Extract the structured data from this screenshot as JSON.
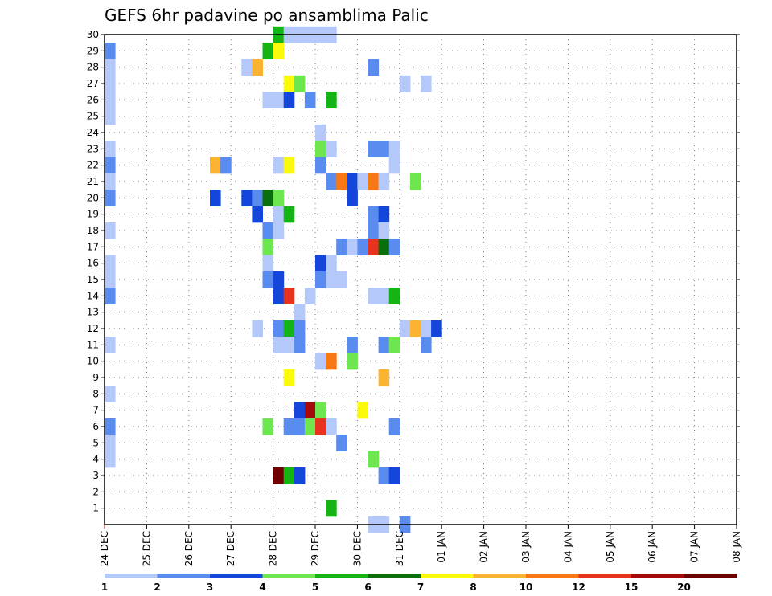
{
  "chart_data": {
    "type": "heatmap",
    "title": "GEFS 6hr padavine po ansamblima Palic",
    "xlabel": "",
    "ylabel": "",
    "x_tick_labels": [
      "24 DEC",
      "25 DEC",
      "26 DEC",
      "27 DEC",
      "28 DEC",
      "29 DEC",
      "30 DEC",
      "31 DEC",
      "01 JAN",
      "02 JAN",
      "03 JAN",
      "04 JAN",
      "05 JAN",
      "06 JAN",
      "07 JAN",
      "08 JAN"
    ],
    "x_range_steps": [
      0,
      60
    ],
    "steps_per_day": 4,
    "y_tick_labels": [
      "1",
      "2",
      "3",
      "4",
      "5",
      "6",
      "7",
      "8",
      "9",
      "10",
      "11",
      "12",
      "13",
      "14",
      "15",
      "16",
      "17",
      "18",
      "19",
      "20",
      "21",
      "22",
      "23",
      "24",
      "25",
      "26",
      "27",
      "28",
      "29",
      "30"
    ],
    "y_range": [
      0,
      30
    ],
    "grid": "dotted",
    "colorbar": {
      "position": "bottom",
      "tick_labels": [
        "1",
        "2",
        "3",
        "4",
        "5",
        "6",
        "7",
        "8",
        "10",
        "12",
        "15",
        "20"
      ],
      "colors": [
        "#b4c8fa",
        "#5a8cf0",
        "#1446dc",
        "#6ee650",
        "#14b414",
        "#0a6e0a",
        "#fafa0a",
        "#fab432",
        "#fa7814",
        "#e6321e",
        "#a50a0a",
        "#6e0000"
      ]
    },
    "cell_encoding": "[member, step, colorClass] — step is the 6-hour interval index from 24 DEC 00Z, colorClass is the index into colorbar.colors",
    "cells": [
      [
        30,
        16,
        4
      ],
      [
        30,
        17,
        0
      ],
      [
        30,
        18,
        0
      ],
      [
        30,
        19,
        0
      ],
      [
        30,
        20,
        0
      ],
      [
        30,
        21,
        0
      ],
      [
        29,
        0,
        1
      ],
      [
        29,
        15,
        4
      ],
      [
        29,
        16,
        6
      ],
      [
        28,
        0,
        0
      ],
      [
        28,
        13,
        0
      ],
      [
        28,
        14,
        7
      ],
      [
        28,
        25,
        1
      ],
      [
        27,
        0,
        0
      ],
      [
        27,
        17,
        6
      ],
      [
        27,
        18,
        3
      ],
      [
        27,
        28,
        0
      ],
      [
        27,
        30,
        0
      ],
      [
        26,
        0,
        0
      ],
      [
        26,
        15,
        0
      ],
      [
        26,
        16,
        0
      ],
      [
        26,
        17,
        2
      ],
      [
        26,
        19,
        1
      ],
      [
        26,
        21,
        4
      ],
      [
        25,
        0,
        0
      ],
      [
        24,
        20,
        0
      ],
      [
        23,
        0,
        0
      ],
      [
        23,
        20,
        3
      ],
      [
        23,
        21,
        0
      ],
      [
        23,
        25,
        1
      ],
      [
        23,
        26,
        1
      ],
      [
        23,
        27,
        0
      ],
      [
        22,
        0,
        1
      ],
      [
        22,
        10,
        7
      ],
      [
        22,
        11,
        1
      ],
      [
        22,
        16,
        0
      ],
      [
        22,
        17,
        6
      ],
      [
        22,
        20,
        1
      ],
      [
        22,
        27,
        0
      ],
      [
        21,
        0,
        0
      ],
      [
        21,
        21,
        1
      ],
      [
        21,
        22,
        8
      ],
      [
        21,
        23,
        2
      ],
      [
        21,
        24,
        0
      ],
      [
        21,
        25,
        8
      ],
      [
        21,
        26,
        0
      ],
      [
        21,
        29,
        3
      ],
      [
        20,
        0,
        1
      ],
      [
        20,
        10,
        2
      ],
      [
        20,
        13,
        2
      ],
      [
        20,
        14,
        1
      ],
      [
        20,
        15,
        5
      ],
      [
        20,
        16,
        3
      ],
      [
        20,
        23,
        2
      ],
      [
        19,
        14,
        2
      ],
      [
        19,
        16,
        0
      ],
      [
        19,
        17,
        4
      ],
      [
        19,
        25,
        1
      ],
      [
        19,
        26,
        2
      ],
      [
        18,
        0,
        0
      ],
      [
        18,
        15,
        1
      ],
      [
        18,
        16,
        0
      ],
      [
        18,
        25,
        1
      ],
      [
        18,
        26,
        0
      ],
      [
        17,
        15,
        3
      ],
      [
        17,
        22,
        1
      ],
      [
        17,
        23,
        0
      ],
      [
        17,
        24,
        1
      ],
      [
        17,
        25,
        9
      ],
      [
        17,
        26,
        5
      ],
      [
        17,
        27,
        1
      ],
      [
        16,
        0,
        0
      ],
      [
        16,
        15,
        0
      ],
      [
        16,
        20,
        2
      ],
      [
        16,
        21,
        0
      ],
      [
        15,
        0,
        0
      ],
      [
        15,
        15,
        1
      ],
      [
        15,
        16,
        2
      ],
      [
        15,
        20,
        1
      ],
      [
        15,
        21,
        0
      ],
      [
        15,
        22,
        0
      ],
      [
        14,
        0,
        1
      ],
      [
        14,
        16,
        2
      ],
      [
        14,
        17,
        9
      ],
      [
        14,
        19,
        0
      ],
      [
        14,
        25,
        0
      ],
      [
        14,
        26,
        0
      ],
      [
        14,
        27,
        4
      ],
      [
        13,
        18,
        0
      ],
      [
        12,
        14,
        0
      ],
      [
        12,
        16,
        1
      ],
      [
        12,
        17,
        4
      ],
      [
        12,
        18,
        1
      ],
      [
        12,
        28,
        0
      ],
      [
        12,
        29,
        7
      ],
      [
        12,
        30,
        0
      ],
      [
        12,
        31,
        2
      ],
      [
        11,
        0,
        0
      ],
      [
        11,
        16,
        0
      ],
      [
        11,
        17,
        0
      ],
      [
        11,
        18,
        1
      ],
      [
        11,
        23,
        1
      ],
      [
        11,
        26,
        1
      ],
      [
        11,
        27,
        3
      ],
      [
        11,
        30,
        1
      ],
      [
        10,
        20,
        0
      ],
      [
        10,
        21,
        8
      ],
      [
        10,
        23,
        3
      ],
      [
        9,
        17,
        6
      ],
      [
        9,
        26,
        7
      ],
      [
        8,
        0,
        0
      ],
      [
        7,
        18,
        2
      ],
      [
        7,
        19,
        10
      ],
      [
        7,
        20,
        3
      ],
      [
        7,
        24,
        6
      ],
      [
        6,
        0,
        1
      ],
      [
        6,
        15,
        3
      ],
      [
        6,
        17,
        1
      ],
      [
        6,
        18,
        1
      ],
      [
        6,
        19,
        3
      ],
      [
        6,
        20,
        9
      ],
      [
        6,
        21,
        0
      ],
      [
        6,
        27,
        1
      ],
      [
        5,
        0,
        0
      ],
      [
        5,
        22,
        1
      ],
      [
        4,
        0,
        0
      ],
      [
        4,
        25,
        3
      ],
      [
        3,
        16,
        11
      ],
      [
        3,
        17,
        4
      ],
      [
        3,
        18,
        2
      ],
      [
        3,
        26,
        1
      ],
      [
        3,
        27,
        2
      ],
      [
        1,
        21,
        4
      ],
      [
        0,
        25,
        0
      ],
      [
        0,
        26,
        0
      ],
      [
        0,
        28,
        1
      ]
    ]
  }
}
